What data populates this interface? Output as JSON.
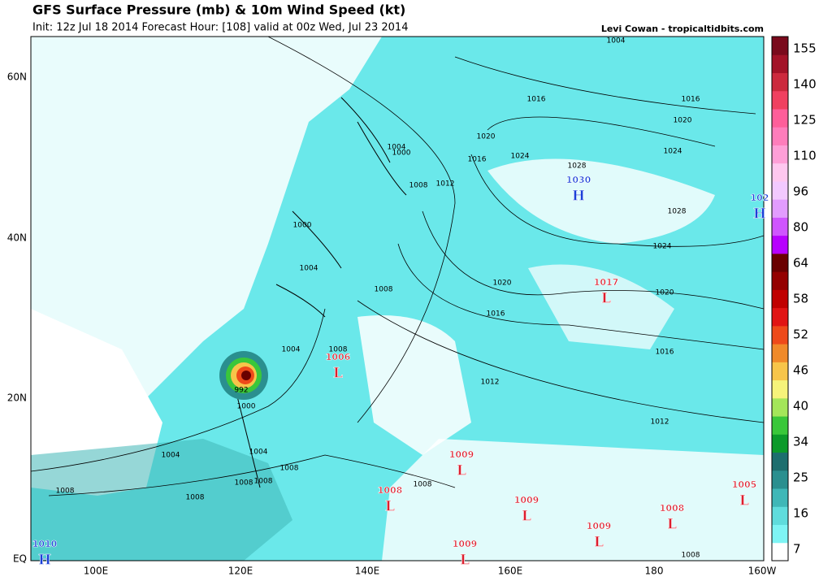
{
  "header": {
    "title": "GFS Surface Pressure (mb) & 10m Wind Speed (kt)",
    "subtitle": "Init: 12z Jul 18 2014 Forecast Hour: [108] valid at 00z Wed, Jul 23 2014",
    "credit": "Levi Cowan - tropicaltidbits.com"
  },
  "map": {
    "lat_labels": [
      "60N",
      "40N",
      "20N",
      "EQ"
    ],
    "lon_labels": [
      "100E",
      "120E",
      "140E",
      "160E",
      "180",
      "160W"
    ],
    "colorbar": {
      "labels": [
        "7",
        "16",
        "25",
        "34",
        "40",
        "46",
        "52",
        "58",
        "64",
        "80",
        "96",
        "110",
        "125",
        "140",
        "155"
      ],
      "colors": [
        "#ffffff",
        "#7ef4f4",
        "#5fdcdc",
        "#3fb7b7",
        "#2a8f8f",
        "#1d6e6e",
        "#0c9a2a",
        "#3ac73a",
        "#a4e65a",
        "#f6f37a",
        "#f7c54a",
        "#f08a2a",
        "#ee4a1a",
        "#e11414",
        "#c00000",
        "#940000",
        "#6a0000",
        "#b700ff",
        "#cf55ff",
        "#e29cff",
        "#f2c9ff",
        "#ffc7ef",
        "#ff9fd7",
        "#ff7dbb",
        "#ff5e9a",
        "#f04060",
        "#cc2a3e",
        "#a31328",
        "#7a0a1c"
      ]
    },
    "centers": [
      {
        "value": "1030",
        "letter": "H"
      },
      {
        "value": "102",
        "letter": "H"
      },
      {
        "value": "1017",
        "letter": "L"
      },
      {
        "value": "1006",
        "letter": "L"
      },
      {
        "value": "1009",
        "letter": "L"
      },
      {
        "value": "1008",
        "letter": "L"
      },
      {
        "value": "1009",
        "letter": "L"
      },
      {
        "value": "1009",
        "letter": "L"
      },
      {
        "value": "1008",
        "letter": "L"
      },
      {
        "value": "1005",
        "letter": "L"
      },
      {
        "value": "1009",
        "letter": "L"
      },
      {
        "value": "1010",
        "letter": "H"
      }
    ],
    "isobar_labels": [
      "1004",
      "1016",
      "1016",
      "1020",
      "1024",
      "1016",
      "1020",
      "1024",
      "1028",
      "1028",
      "1024",
      "1020",
      "1020",
      "1016",
      "1016",
      "1012",
      "1012",
      "1008",
      "1004",
      "1000",
      "1004",
      "1008",
      "1008",
      "1008",
      "1004",
      "1004",
      "1008",
      "1012",
      "1000",
      "1000",
      "1004",
      "1008",
      "1008",
      "1008",
      "1008",
      "1008",
      "992"
    ]
  }
}
